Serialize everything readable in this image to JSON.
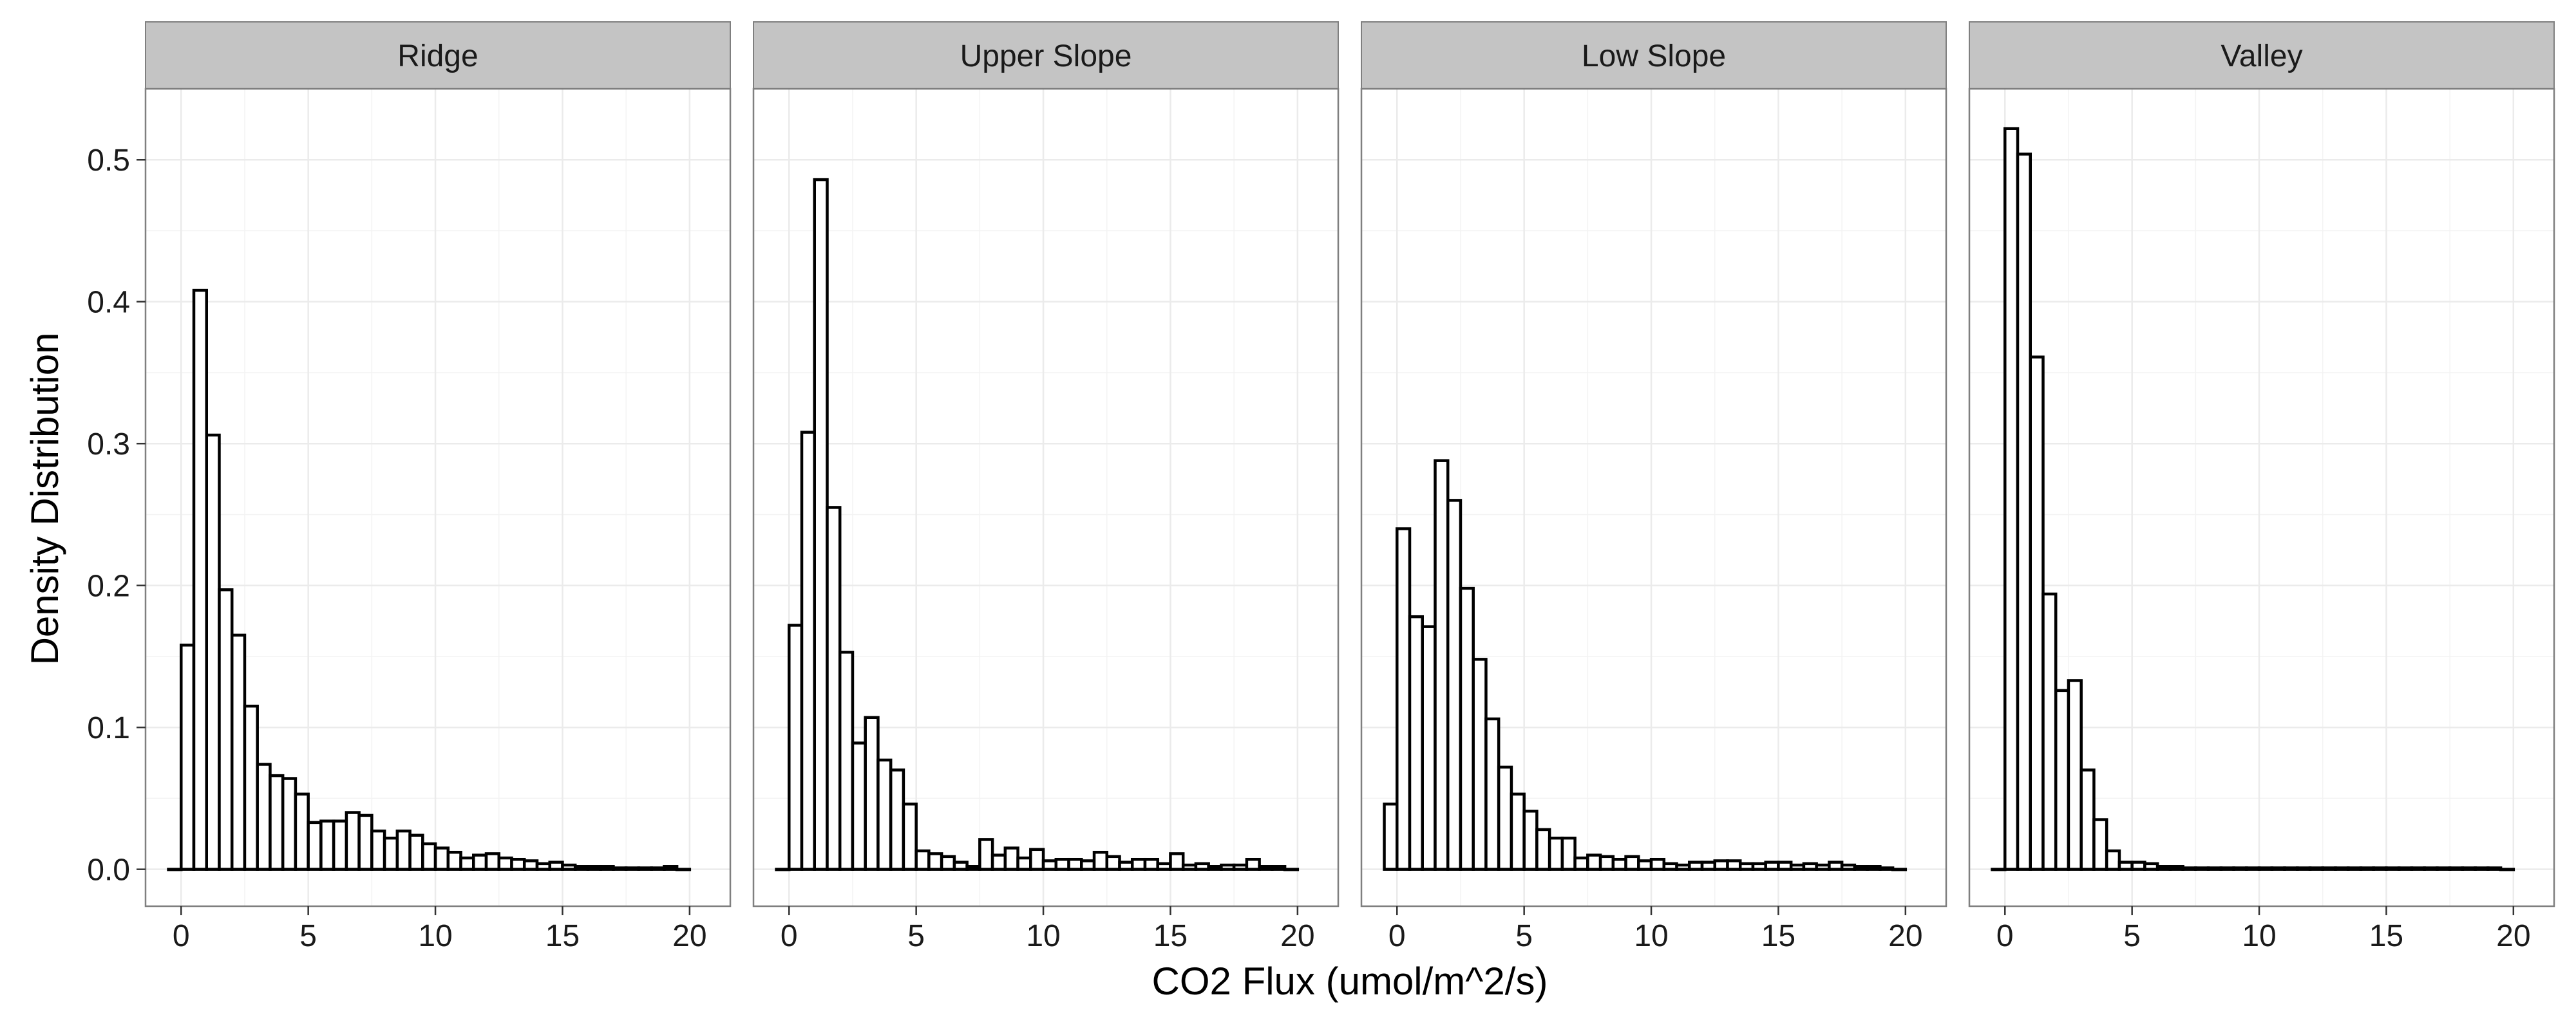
{
  "chart_data": {
    "type": "bar",
    "subtype": "faceted-histogram",
    "xlabel": "CO2 Flux (umol/m^2/s)",
    "ylabel": "Density Distribution",
    "xlim": [
      -1.4,
      21.6
    ],
    "ylim": [
      -0.026,
      0.55
    ],
    "x_ticks": [
      0,
      5,
      10,
      15,
      20
    ],
    "y_ticks": [
      0.0,
      0.1,
      0.2,
      0.3,
      0.4,
      0.5
    ],
    "y_tick_labels": [
      "0.0",
      "0.1",
      "0.2",
      "0.3",
      "0.4",
      "0.5"
    ],
    "bin_width": 0.5,
    "bin_start": -0.5,
    "grid": true,
    "colors": {
      "bar_fill": "#ffffff",
      "bar_stroke": "#000000",
      "strip_fill": "#c4c4c4",
      "grid": "#ebebeb",
      "panel_border": "#7f7f7f"
    },
    "facets": [
      {
        "label": "Ridge",
        "values": [
          0,
          0.158,
          0.408,
          0.306,
          0.197,
          0.165,
          0.115,
          0.074,
          0.066,
          0.064,
          0.053,
          0.033,
          0.034,
          0.034,
          0.04,
          0.038,
          0.027,
          0.022,
          0.027,
          0.024,
          0.018,
          0.015,
          0.012,
          0.008,
          0.01,
          0.011,
          0.008,
          0.007,
          0.006,
          0.004,
          0.005,
          0.003,
          0.002,
          0.002,
          0.002,
          0.001,
          0.001,
          0.001,
          0.001,
          0.002,
          0
        ]
      },
      {
        "label": "Upper Slope",
        "values": [
          0,
          0.172,
          0.308,
          0.486,
          0.255,
          0.153,
          0.089,
          0.107,
          0.077,
          0.07,
          0.046,
          0.013,
          0.011,
          0.009,
          0.005,
          0.002,
          0.021,
          0.01,
          0.015,
          0.008,
          0.014,
          0.006,
          0.007,
          0.007,
          0.006,
          0.012,
          0.009,
          0.005,
          0.007,
          0.007,
          0.004,
          0.011,
          0.003,
          0.004,
          0.002,
          0.003,
          0.003,
          0.007,
          0.002,
          0.002,
          0
        ]
      },
      {
        "label": "Low Slope",
        "values": [
          0.046,
          0.24,
          0.178,
          0.171,
          0.288,
          0.26,
          0.198,
          0.148,
          0.106,
          0.072,
          0.053,
          0.041,
          0.028,
          0.022,
          0.022,
          0.008,
          0.01,
          0.009,
          0.007,
          0.009,
          0.006,
          0.007,
          0.004,
          0.003,
          0.005,
          0.005,
          0.006,
          0.006,
          0.004,
          0.004,
          0.005,
          0.005,
          0.003,
          0.004,
          0.003,
          0.005,
          0.003,
          0.002,
          0.002,
          0.001,
          0
        ]
      },
      {
        "label": "Valley",
        "values": [
          0,
          0.522,
          0.504,
          0.361,
          0.194,
          0.126,
          0.133,
          0.07,
          0.035,
          0.013,
          0.005,
          0.005,
          0.004,
          0.002,
          0.002,
          0.001,
          0.001,
          0.001,
          0.001,
          0.001,
          0.001,
          0.001,
          0.001,
          0.001,
          0.001,
          0.001,
          0.001,
          0.001,
          0.001,
          0.001,
          0.001,
          0.001,
          0.001,
          0.001,
          0.001,
          0.001,
          0.001,
          0.001,
          0.001,
          0.001,
          0
        ]
      }
    ]
  }
}
